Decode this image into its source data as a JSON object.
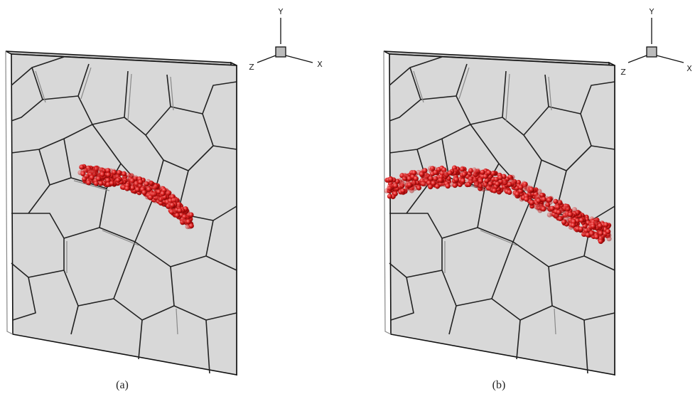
{
  "panels": [
    {
      "caption": "(a)",
      "axes": {
        "x": "X",
        "y": "Y",
        "z": "Z"
      }
    },
    {
      "caption": "(b)",
      "axes": {
        "x": "X",
        "y": "Y",
        "z": "Z"
      }
    }
  ]
}
